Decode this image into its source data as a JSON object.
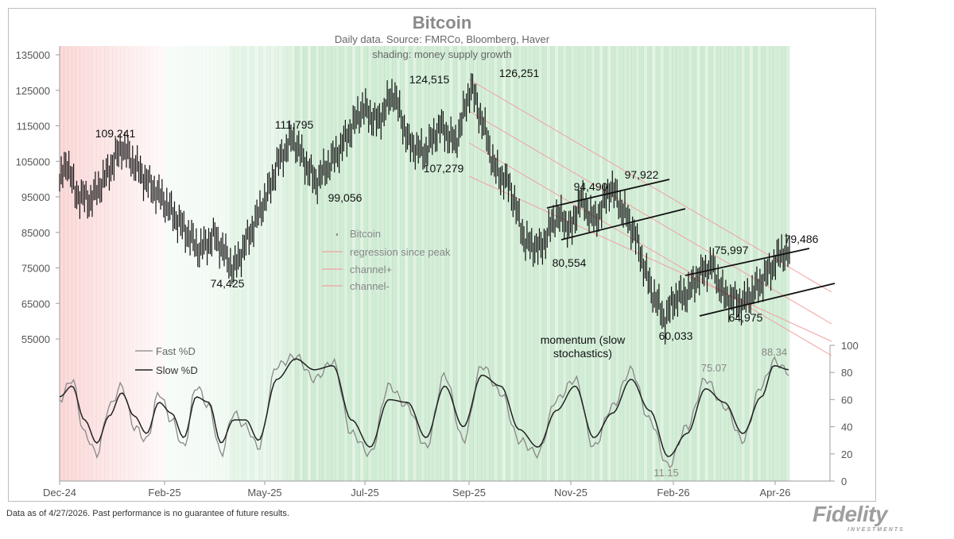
{
  "chart_data": {
    "type": "line",
    "title": "Bitcoin",
    "subtitle": "Daily data.  Source: FMRCo, Bloomberg, Haver",
    "subtitle2": "shading: money supply growth",
    "x_tick_labels": [
      "Dec-24",
      "Feb-25",
      "May-25",
      "Jul-25",
      "Sep-25",
      "Nov-25",
      "Feb-26",
      "Apr-26"
    ],
    "price_axis": {
      "ticks": [
        55000,
        65000,
        75000,
        85000,
        95000,
        105000,
        115000,
        125000,
        135000
      ],
      "ylim": [
        50000,
        138000
      ]
    },
    "momentum_axis": {
      "ticks": [
        0,
        20,
        40,
        60,
        80,
        100
      ],
      "ylim": [
        0,
        100
      ]
    },
    "legend_price": [
      "Bitcoin",
      "regression since peak",
      "channel+",
      "channel-"
    ],
    "legend_momentum": [
      "Fast %D",
      "Slow %D"
    ],
    "momentum_title": "momentum (slow\nstochastics)",
    "series": [
      {
        "name": "Bitcoin",
        "x": [
          0,
          5,
          10,
          20,
          30,
          40,
          55,
          65,
          80,
          90,
          100,
          112,
          120,
          135,
          140,
          150,
          160,
          165,
          180,
          195,
          205,
          215,
          225,
          235,
          245,
          255,
          265,
          275,
          280,
          290,
          300,
          310,
          320,
          330,
          335,
          345,
          355,
          370,
          380,
          390,
          395,
          405,
          410,
          420,
          428,
          440,
          450,
          460,
          465,
          470
        ],
        "values": [
          99000,
          105000,
          96000,
          94000,
          101000,
          109241,
          100000,
          95000,
          86000,
          80000,
          84000,
          74425,
          82000,
          97000,
          104000,
          111795,
          103000,
          99056,
          108000,
          120000,
          116000,
          124515,
          110000,
          107279,
          115000,
          110000,
          126251,
          112000,
          103000,
          98000,
          82000,
          80554,
          90000,
          86000,
          94490,
          88000,
          97922,
          85000,
          70000,
          60033,
          66000,
          68000,
          72000,
          75997,
          67000,
          64975,
          70000,
          76000,
          79486,
          78500
        ]
      },
      {
        "name": "Fast %D",
        "x": [
          0,
          8,
          16,
          24,
          32,
          40,
          48,
          56,
          64,
          72,
          80,
          88,
          96,
          104,
          112,
          120,
          128,
          140,
          152,
          164,
          176,
          188,
          200,
          212,
          224,
          236,
          248,
          260,
          272,
          284,
          296,
          308,
          320,
          332,
          344,
          356,
          368,
          380,
          392,
          404,
          416,
          428,
          440,
          452,
          460,
          470
        ],
        "values": [
          60,
          75,
          35,
          20,
          55,
          70,
          40,
          30,
          65,
          45,
          25,
          70,
          55,
          20,
          50,
          40,
          25,
          85,
          92,
          75,
          88,
          35,
          20,
          70,
          55,
          25,
          78,
          30,
          85,
          65,
          30,
          20,
          60,
          75,
          25,
          55,
          82,
          45,
          11.15,
          40,
          75.07,
          55,
          30,
          70,
          88.34,
          80
        ]
      },
      {
        "name": "Slow %D",
        "x": [
          0,
          8,
          16,
          24,
          32,
          40,
          48,
          56,
          64,
          72,
          80,
          88,
          96,
          104,
          112,
          120,
          128,
          140,
          152,
          164,
          176,
          188,
          200,
          212,
          224,
          236,
          248,
          260,
          272,
          284,
          296,
          308,
          320,
          332,
          344,
          356,
          368,
          380,
          392,
          404,
          416,
          428,
          440,
          452,
          460,
          470
        ],
        "values": [
          62,
          70,
          45,
          28,
          48,
          65,
          48,
          35,
          58,
          50,
          32,
          62,
          58,
          28,
          45,
          45,
          30,
          75,
          90,
          82,
          85,
          45,
          25,
          60,
          58,
          32,
          70,
          40,
          78,
          70,
          38,
          25,
          52,
          70,
          32,
          50,
          75,
          52,
          18,
          35,
          68,
          58,
          35,
          62,
          85,
          82
        ]
      }
    ],
    "annotations_price": [
      {
        "label": "109,241",
        "value": 109241
      },
      {
        "label": "74,425",
        "value": 74425
      },
      {
        "label": "111,795",
        "value": 111795
      },
      {
        "label": "99,056",
        "value": 99056
      },
      {
        "label": "124,515",
        "value": 124515
      },
      {
        "label": "107,279",
        "value": 107279
      },
      {
        "label": "126,251",
        "value": 126251
      },
      {
        "label": "94,490",
        "value": 94490
      },
      {
        "label": "97,922",
        "value": 97922
      },
      {
        "label": "80,554",
        "value": 80554
      },
      {
        "label": "60,033",
        "value": 60033
      },
      {
        "label": "75,997",
        "value": 75997
      },
      {
        "label": "64,975",
        "value": 64975
      },
      {
        "label": "79,486",
        "value": 79486
      }
    ],
    "annotations_momentum": [
      {
        "label": "11.15",
        "value": 11.15
      },
      {
        "label": "75.07",
        "value": 75.07
      },
      {
        "label": "88.34",
        "value": 88.34
      }
    ],
    "colors": {
      "price": "#111111",
      "regression": "#f2a0a0",
      "fast": "#888888",
      "slow": "#222222",
      "shade_green": "#7fc98a",
      "shade_red": "#f3a3a3",
      "axis_text": "#555555"
    }
  },
  "footer": "Data as of 4/27/2026. Past performance is no guarantee of future results.",
  "logo": {
    "name": "Fidelity",
    "sub": "INVESTMENTS"
  }
}
